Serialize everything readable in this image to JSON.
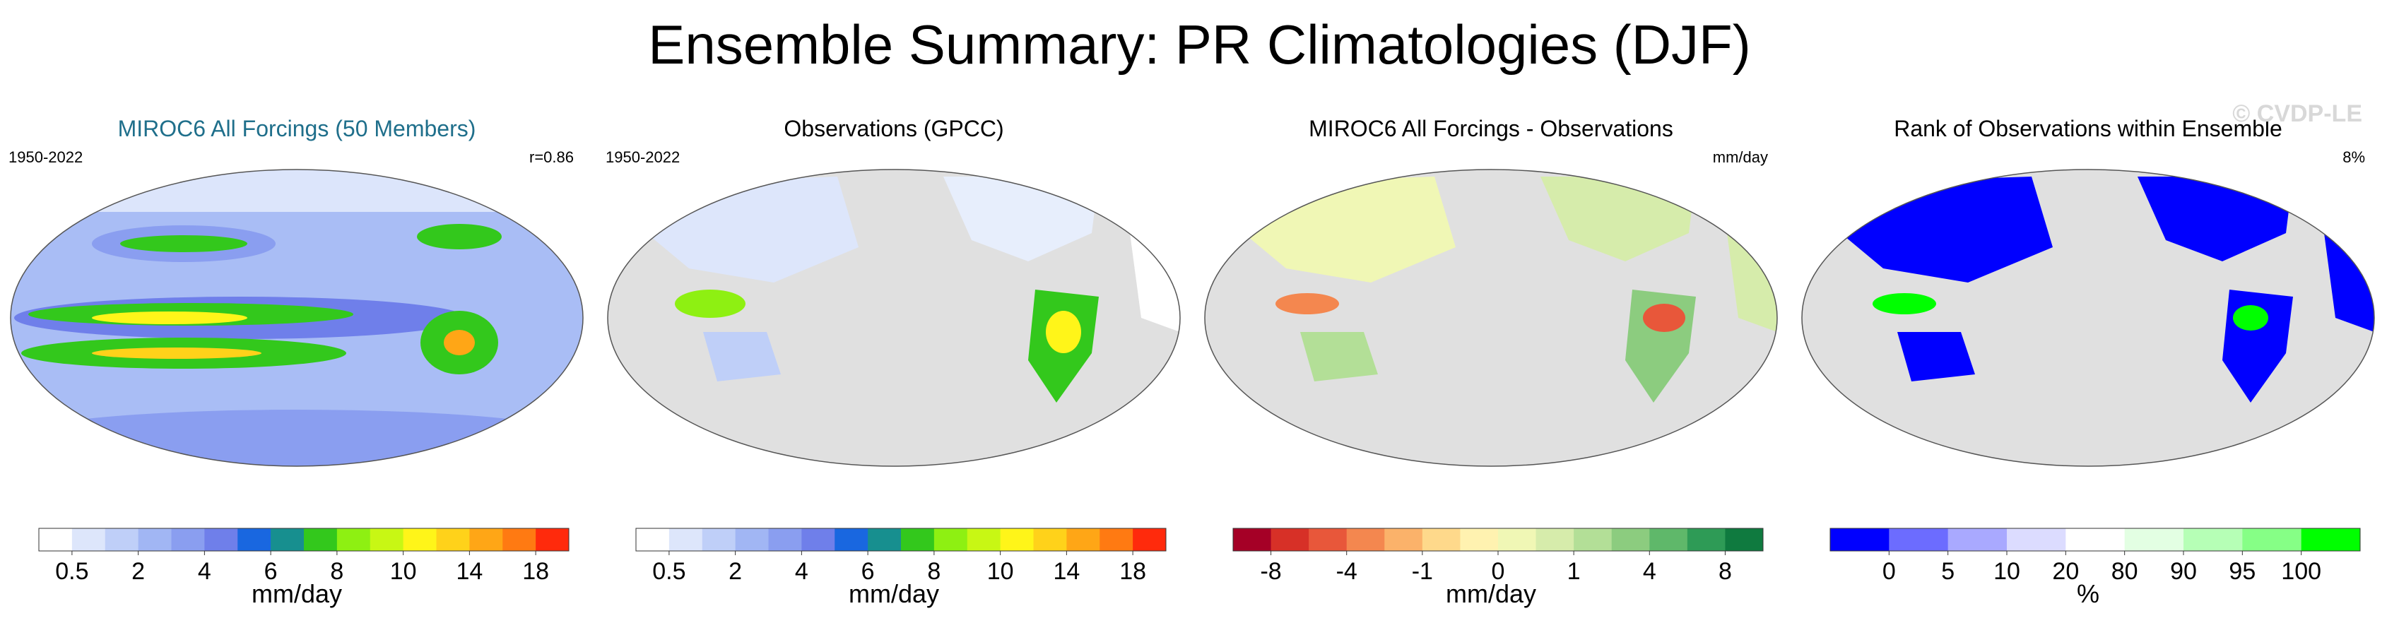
{
  "title": "Ensemble Summary: PR Climatologies (DJF)",
  "watermark": "© CVDP-LE",
  "panels": [
    {
      "title": "MIROC6 All Forcings (50 Members)",
      "left_label": "1950-2022",
      "right_label": "r=0.86",
      "colorbar": {
        "units": "mm/day",
        "colors": [
          "#ffffff",
          "#dde6fb",
          "#bfcff8",
          "#a1b6f4",
          "#8a9ef0",
          "#6f7fea",
          "#1967e0",
          "#178f8f",
          "#33c81c",
          "#8ef012",
          "#c8f714",
          "#fff519",
          "#ffd21a",
          "#ffa616",
          "#ff7a12",
          "#ff2a0c"
        ],
        "ticks": [
          "0.5",
          "2",
          "4",
          "6",
          "8",
          "10",
          "14",
          "18"
        ]
      }
    },
    {
      "title": "Observations (GPCC)",
      "left_label": "1950-2022",
      "right_label": "",
      "colorbar": {
        "units": "mm/day",
        "colors": [
          "#ffffff",
          "#dde6fb",
          "#bfcff8",
          "#a1b6f4",
          "#8a9ef0",
          "#6f7fea",
          "#1967e0",
          "#178f8f",
          "#33c81c",
          "#8ef012",
          "#c8f714",
          "#fff519",
          "#ffd21a",
          "#ffa616",
          "#ff7a12",
          "#ff2a0c"
        ],
        "ticks": [
          "0.5",
          "2",
          "4",
          "6",
          "8",
          "10",
          "14",
          "18"
        ]
      }
    },
    {
      "title": "MIROC6 All Forcings - Observations",
      "left_label": "",
      "right_label": "mm/day",
      "colorbar": {
        "units": "mm/day",
        "colors": [
          "#a50026",
          "#d73027",
          "#e8573a",
          "#f4874f",
          "#fbb26a",
          "#fed98b",
          "#fff2b0",
          "#f0f7b5",
          "#d6ecab",
          "#b3df97",
          "#8ccc7f",
          "#5fb86a",
          "#2e9b56",
          "#0f7a3f"
        ],
        "ticks": [
          "-8",
          "-4",
          "-1",
          "0",
          "1",
          "4",
          "8"
        ]
      }
    },
    {
      "title": "Rank of Observations within Ensemble",
      "left_label": "",
      "right_label": "8%",
      "colorbar": {
        "units": "%",
        "colors": [
          "#0000ff",
          "#6c6cff",
          "#a9a9ff",
          "#dcdcff",
          "#ffffff",
          "#e3ffe3",
          "#b6ffb6",
          "#86ff86",
          "#00ff00"
        ],
        "ticks": [
          "0",
          "5",
          "10",
          "20",
          "80",
          "90",
          "95",
          "100"
        ]
      }
    }
  ],
  "chart_data": [
    {
      "type": "heatmap",
      "title": "MIROC6 All Forcings (50 Members)",
      "period": "1950-2022",
      "pattern_correlation": 0.86,
      "units": "mm/day",
      "levels": [
        0.5,
        2,
        4,
        6,
        8,
        10,
        14,
        18
      ]
    },
    {
      "type": "heatmap",
      "title": "Observations (GPCC)",
      "period": "1950-2022",
      "units": "mm/day",
      "levels": [
        0.5,
        2,
        4,
        6,
        8,
        10,
        14,
        18
      ]
    },
    {
      "type": "heatmap",
      "title": "MIROC6 All Forcings - Observations",
      "units": "mm/day",
      "levels": [
        -8,
        -4,
        -1,
        0,
        1,
        4,
        8
      ]
    },
    {
      "type": "heatmap",
      "title": "Rank of Observations within Ensemble",
      "summary": "8%",
      "units": "%",
      "levels": [
        0,
        5,
        10,
        20,
        80,
        90,
        95,
        100
      ]
    }
  ]
}
